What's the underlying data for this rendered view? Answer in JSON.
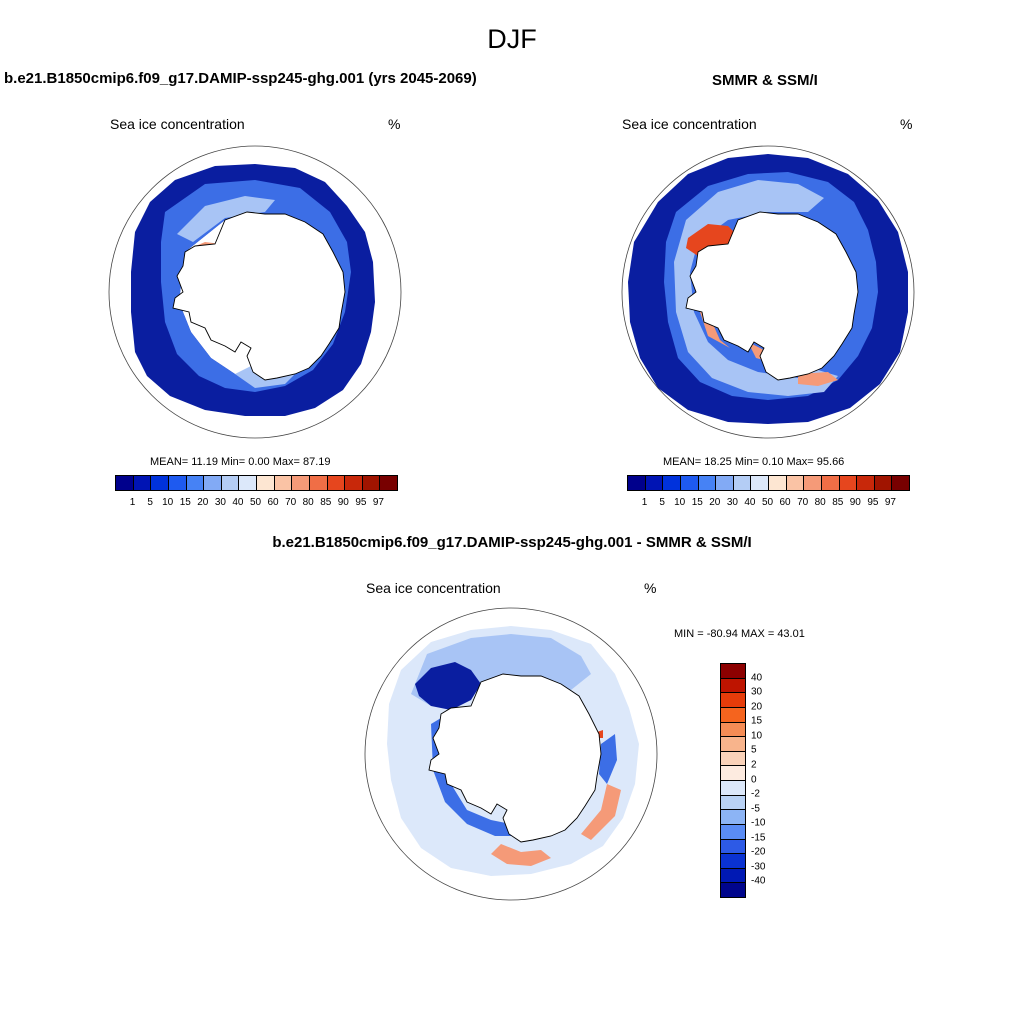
{
  "title": "DJF",
  "panels": [
    {
      "title": "b.e21.B1850cmip6.f09_g17.DAMIP-ssp245-ghg.001 (yrs 2045-2069)",
      "left_label": "Sea ice concentration",
      "right_label": "%",
      "stats": "MEAN=  11.19  Min=   0.00  Max=  87.19"
    },
    {
      "title": "SMMR & SSM/I",
      "left_label": "Sea ice concentration",
      "right_label": "%",
      "stats": "MEAN=  18.25  Min=   0.10  Max=  95.66"
    },
    {
      "title": "b.e21.B1850cmip6.f09_g17.DAMIP-ssp245-ghg.001 - SMMR & SSM/I",
      "left_label": "Sea ice concentration",
      "right_label": "%",
      "stats": "MIN = -80.94 MAX =  43.01"
    }
  ],
  "concentration_colorbar": {
    "labels": [
      "1",
      "5",
      "10",
      "15",
      "20",
      "30",
      "40",
      "50",
      "60",
      "70",
      "80",
      "85",
      "90",
      "95",
      "97"
    ],
    "colors": [
      "#00008c",
      "#0014b4",
      "#0032dc",
      "#1e5af0",
      "#4682f5",
      "#82aaf5",
      "#b4cdf5",
      "#dce8fa",
      "#fde6d2",
      "#fac3a5",
      "#f59a78",
      "#f06e46",
      "#e6461e",
      "#c8280a",
      "#a01400",
      "#780000"
    ]
  },
  "difference_colorbar": {
    "labels": [
      "40",
      "30",
      "20",
      "15",
      "10",
      "5",
      "2",
      "0",
      "-2",
      "-5",
      "-10",
      "-15",
      "-20",
      "-30",
      "-40"
    ],
    "colors": [
      "#8c0000",
      "#be1400",
      "#e63c0a",
      "#f5641e",
      "#f58c55",
      "#f8b48c",
      "#fad2b9",
      "#fdebe0",
      "#dce8fa",
      "#b9d2f5",
      "#8cb4f5",
      "#5a8cf5",
      "#2d5ae6",
      "#0a32d2",
      "#0019b4",
      "#00058c"
    ]
  },
  "map_style": {
    "ice_dark": "#0a1ea0",
    "ice_mid": "#3c6ee6",
    "ice_light": "#a8c4f5",
    "ice_pale": "#dce8fa",
    "high_red": "#e6461e",
    "high_orange": "#f59a78",
    "continent": "#ffffff",
    "coastline": "#000000"
  }
}
